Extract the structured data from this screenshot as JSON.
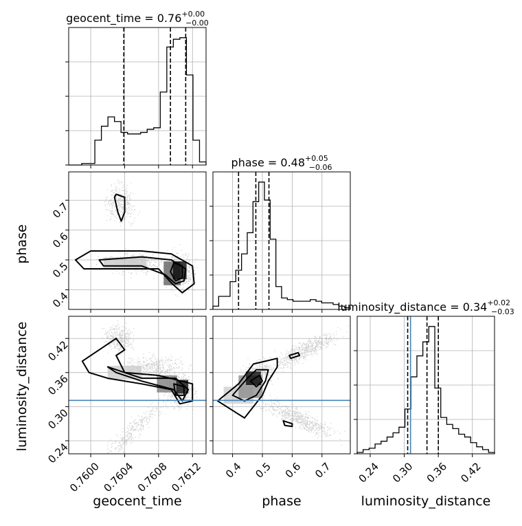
{
  "chart_data": {
    "type": "corner",
    "parameters": [
      "geocent_time",
      "phase",
      "luminosity_distance"
    ],
    "titles": [
      {
        "name": "geocent_time",
        "value": "0.76",
        "plus": "+0.00",
        "minus": "−0.00"
      },
      {
        "name": "phase",
        "value": "0.48",
        "plus": "+0.05",
        "minus": "−0.06"
      },
      {
        "name": "luminosity_distance",
        "value": "0.34",
        "plus": "+0.02",
        "minus": "−0.03"
      }
    ],
    "ranges": {
      "geocent_time": [
        0.75974,
        0.76136
      ],
      "phase": [
        0.334,
        0.795
      ],
      "luminosity_distance": [
        0.217,
        0.459
      ]
    },
    "ticks": {
      "geocent_time": {
        "values": [
          0.76,
          0.7604,
          0.7608,
          0.7612
        ],
        "labels": [
          "0.7600",
          "0.7604",
          "0.7608",
          "0.7612"
        ]
      },
      "phase": {
        "values": [
          0.4,
          0.5,
          0.6,
          0.7
        ],
        "labels": [
          "0.4",
          "0.5",
          "0.6",
          "0.7"
        ]
      },
      "luminosity_distance": {
        "values": [
          0.24,
          0.3,
          0.36,
          0.42
        ],
        "labels": [
          "0.24",
          "0.30",
          "0.36",
          "0.42"
        ]
      }
    },
    "quantiles": {
      "geocent_time": [
        0.76039,
        0.76094,
        0.76112
      ],
      "phase": [
        0.42,
        0.478,
        0.522
      ],
      "luminosity_distance": [
        0.306,
        0.34,
        0.36
      ]
    },
    "truth": {
      "luminosity_distance": 0.311
    },
    "histograms": {
      "geocent_time": {
        "edges": [
          0.75974,
          0.76136
        ],
        "counts": [
          0,
          0,
          1,
          1,
          16,
          25,
          31,
          28,
          21,
          20,
          20,
          21,
          23,
          24,
          47,
          76,
          81,
          82,
          58,
          16,
          2
        ]
      },
      "phase": {
        "edges": [
          0.334,
          0.795
        ],
        "counts": [
          2,
          8,
          8,
          17,
          24,
          34,
          47,
          66,
          78,
          67,
          43,
          14,
          7,
          6,
          5,
          5,
          5,
          6,
          5,
          4,
          4,
          3,
          2,
          1
        ]
      },
      "luminosity_distance": {
        "edges": [
          0.217,
          0.459
        ],
        "counts": [
          1,
          3,
          4,
          7,
          9,
          12,
          15,
          19,
          32,
          55,
          70,
          80,
          91,
          47,
          26,
          21,
          18,
          14,
          12,
          8,
          5,
          3,
          1
        ]
      }
    },
    "colors": {
      "line": "#000000",
      "truth": "#4682b4",
      "grid": "#b0b0b0"
    },
    "grid": true
  }
}
